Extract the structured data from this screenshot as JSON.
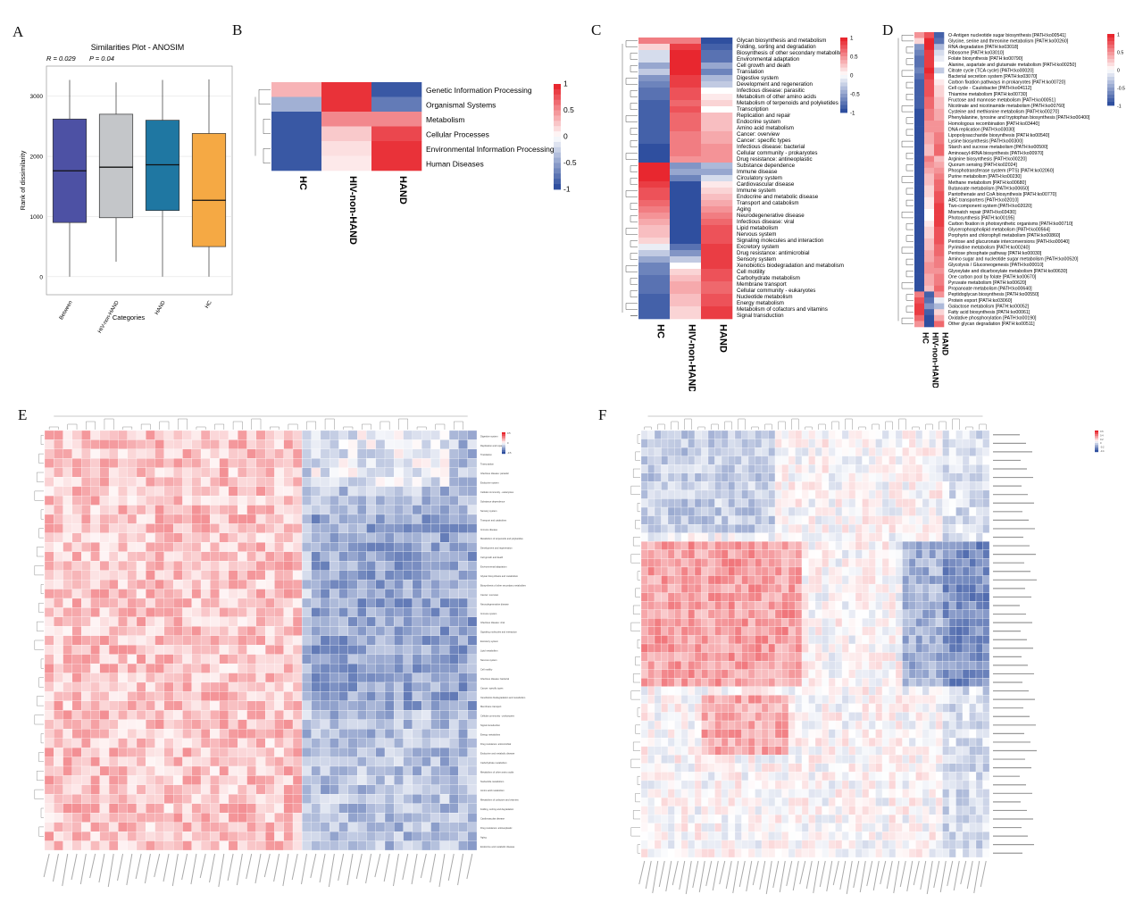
{
  "panel_labels": {
    "a": "A",
    "b": "B",
    "c": "C",
    "d": "D",
    "e": "E",
    "f": "F"
  },
  "colors": {
    "low": "#2f4f9f",
    "mid": "#ffffff",
    "high": "#e8272f"
  },
  "chart_data": [
    {
      "id": "A",
      "type": "box",
      "title": "Similarities Plot - ANOSIM",
      "stats": {
        "r": "R = 0.029",
        "p": "P = 0.04"
      },
      "xlabel": "Categories",
      "ylabel": "Rank of dissimilarity",
      "ylim": [
        -300,
        3500
      ],
      "yticks": [
        0,
        1000,
        2000,
        3000
      ],
      "categories": [
        "Between",
        "HIV-non-HAND",
        "HAND",
        "HC"
      ],
      "colors": [
        "#4d51a4",
        "#c4c6c9",
        "#1f77a2",
        "#f5a944"
      ],
      "boxes": [
        {
          "q1": 900,
          "median": 1760,
          "q3": 2620,
          "low": 0,
          "high": 3270
        },
        {
          "q1": 980,
          "median": 1820,
          "q3": 2700,
          "low": 250,
          "high": 3230
        },
        {
          "q1": 1100,
          "median": 1860,
          "q3": 2600,
          "low": 0,
          "high": 3270
        },
        {
          "q1": 500,
          "median": 1270,
          "q3": 2380,
          "low": 0,
          "high": 3280
        }
      ]
    },
    {
      "id": "B",
      "type": "heatmap",
      "columns": [
        "HC",
        "HIV-non-HAND",
        "HAND"
      ],
      "rows": [
        "Genetic Information Processing",
        "Organismal Systems",
        "Metabolism",
        "Cellular Processes",
        "Environmental Information Processing",
        "Human Diseases"
      ],
      "values": [
        [
          0.35,
          0.95,
          -0.95
        ],
        [
          -0.45,
          0.95,
          -0.75
        ],
        [
          -0.95,
          0.55,
          0.55
        ],
        [
          -0.95,
          0.25,
          0.85
        ],
        [
          -0.95,
          0.15,
          0.95
        ],
        [
          -0.95,
          0.1,
          0.95
        ]
      ],
      "legend_ticks": [
        "1",
        "0.5",
        "0",
        "-0.5",
        "-1"
      ]
    },
    {
      "id": "C",
      "type": "heatmap",
      "columns": [
        "HC",
        "HIV-non-HAND",
        "HAND"
      ],
      "rows": [
        "Glycan biosynthesis and metabolism",
        "Folding, sorting and degradation",
        "Biosynthesis of other secondary metabolites",
        "Environmental adaptation",
        "Cell growth and death",
        "Translation",
        "Digestive system",
        "Development and regeneration",
        "Infectious disease: parasitic",
        "Metabolism of other amino acids",
        "Metabolism of terpenoids and polyketides",
        "Transcription",
        "Replication and repair",
        "Endocrine system",
        "Amino acid metabolism",
        "Cancer: overview",
        "Cancer: specific types",
        "Infectious disease: bacterial",
        "Cellular community - prokaryotes",
        "Drug resistance: antineoplastic",
        "Substance dependence",
        "Immune disease",
        "Circulatory system",
        "Cardiovascular disease",
        "Immune system",
        "Endocrine and metabolic disease",
        "Transport and catabolism",
        "Aging",
        "Neurodegenerative disease",
        "Infectious disease: viral",
        "Lipid metabolism",
        "Nervous system",
        "Signaling molecules and interaction",
        "Excretory system",
        "Drug resistance: antimicrobial",
        "Sensory system",
        "Xenobiotics biodegradation and metabolism",
        "Cell motility",
        "Carbohydrate metabolism",
        "Membrane transport",
        "Cellular community - eukaryotes",
        "Nucleotide metabolism",
        "Energy metabolism",
        "Metabolism of cofactors and vitamins",
        "Signal transduction"
      ],
      "values": [
        [
          0.6,
          0.6,
          -1.0
        ],
        [
          0.2,
          0.9,
          -0.9
        ],
        [
          -0.2,
          1.0,
          -0.8
        ],
        [
          -0.2,
          1.0,
          -0.8
        ],
        [
          -0.5,
          1.0,
          -0.5
        ],
        [
          -0.3,
          1.0,
          -0.7
        ],
        [
          -0.6,
          0.9,
          -0.4
        ],
        [
          -0.7,
          0.9,
          -0.3
        ],
        [
          -0.8,
          0.8,
          0.0
        ],
        [
          -0.8,
          0.8,
          0.1
        ],
        [
          -0.9,
          0.7,
          0.2
        ],
        [
          -0.9,
          0.8,
          0.0
        ],
        [
          -0.9,
          0.7,
          0.3
        ],
        [
          -0.9,
          0.7,
          0.3
        ],
        [
          -0.9,
          0.7,
          0.3
        ],
        [
          -0.9,
          0.6,
          0.4
        ],
        [
          -0.9,
          0.6,
          0.4
        ],
        [
          -1.0,
          0.6,
          0.5
        ],
        [
          -1.0,
          0.6,
          0.5
        ],
        [
          -1.0,
          0.5,
          0.5
        ],
        [
          1.0,
          -0.6,
          -0.4
        ],
        [
          1.0,
          -0.5,
          -0.5
        ],
        [
          1.0,
          -0.7,
          -0.2
        ],
        [
          0.9,
          -1.0,
          0.1
        ],
        [
          0.8,
          -1.0,
          0.2
        ],
        [
          0.8,
          -1.0,
          0.3
        ],
        [
          0.7,
          -1.0,
          0.4
        ],
        [
          0.6,
          -1.0,
          0.5
        ],
        [
          0.5,
          -1.0,
          0.6
        ],
        [
          0.4,
          -1.0,
          0.7
        ],
        [
          0.3,
          -1.0,
          0.8
        ],
        [
          0.3,
          -1.0,
          0.8
        ],
        [
          0.2,
          -1.0,
          0.8
        ],
        [
          -0.1,
          -0.8,
          0.9
        ],
        [
          -0.3,
          -0.6,
          0.9
        ],
        [
          -0.5,
          -0.3,
          0.9
        ],
        [
          -0.7,
          0.0,
          0.9
        ],
        [
          -0.7,
          0.2,
          0.8
        ],
        [
          -0.8,
          0.3,
          0.8
        ],
        [
          -0.8,
          0.4,
          0.7
        ],
        [
          -0.8,
          0.4,
          0.7
        ],
        [
          -0.9,
          0.3,
          0.8
        ],
        [
          -0.9,
          0.3,
          0.8
        ],
        [
          -0.9,
          0.2,
          0.9
        ],
        [
          -0.9,
          0.2,
          0.9
        ]
      ],
      "legend_ticks": [
        "1",
        "0.5",
        "0",
        "-0.5",
        "-1"
      ]
    },
    {
      "id": "D",
      "type": "heatmap",
      "columns": [
        "HC",
        "HIV-non-HAND",
        "HAND"
      ],
      "rows": [
        "O-Antigen nucleotide sugar biosynthesis [PATH:ko00541]",
        "Glycine, serine and threonine metabolism [PATH:ko00260]",
        "RNA degradation [PATH:ko03018]",
        "Ribosome [PATH:ko03010]",
        "Folate biosynthesis [PATH:ko00790]",
        "Alanine, aspartate and glutamate metabolism [PATH:ko00250]",
        "Citrate cycle (TCA cycle) [PATH:ko00020]",
        "Bacterial secretion system [PATH:ko03070]",
        "Carbon fixation pathways in prokaryotes [PATH:ko00720]",
        "Cell cycle - Caulobacter [PATH:ko04112]",
        "Thiamine metabolism [PATH:ko00730]",
        "Fructose and mannose metabolism [PATH:ko00051]",
        "Nicotinate and nicotinamide metabolism [PATH:ko00760]",
        "Cysteine and methionine metabolism [PATH:ko00270]",
        "Phenylalanine, tyrosine and tryptophan biosynthesis [PATH:ko00400]",
        "Homologous recombination [PATH:ko03440]",
        "DNA replication [PATH:ko03030]",
        "Lipopolysaccharide biosynthesis [PATH:ko00540]",
        "Lysine biosynthesis [PATH:ko00300]",
        "Starch and sucrose metabolism [PATH:ko00500]",
        "Aminoacyl-tRNA biosynthesis [PATH:ko00970]",
        "Arginine biosynthesis [PATH:ko00220]",
        "Quorum sensing [PATH:ko02024]",
        "Phosphotransferase system (PTS) [PATH:ko02060]",
        "Purine metabolism [PATH:ko00230]",
        "Methane metabolism [PATH:ko00680]",
        "Butanoate metabolism [PATH:ko00650]",
        "Pantothenate and CoA biosynthesis [PATH:ko00770]",
        "ABC transporters [PATH:ko02010]",
        "Two-component system [PATH:ko02020]",
        "Mismatch repair [PATH:ko03430]",
        "Photosynthesis [PATH:ko00195]",
        "Carbon fixation in photosynthetic organisms [PATH:ko00710]",
        "Glycerophospholipid metabolism [PATH:ko00564]",
        "Porphyrin and chlorophyll metabolism [PATH:ko00860]",
        "Pentose and glucuronate interconversions [PATH:ko00040]",
        "Pyrimidine metabolism [PATH:ko00240]",
        "Pentose phosphate pathway [PATH:ko00030]",
        "Amino sugar and nucleotide sugar metabolism [PATH:ko00520]",
        "Glycolysis / Gluconeogenesis [PATH:ko00010]",
        "Glyoxylate and dicarboxylate metabolism [PATH:ko00630]",
        "One carbon pool by folate [PATH:ko00670]",
        "Pyruvate metabolism [PATH:ko00620]",
        "Propanoate metabolism [PATH:ko00640]",
        "Peptidoglycan biosynthesis [PATH:ko00550]",
        "Protein export [PATH:ko03060]",
        "Galactose metabolism [PATH:ko00052]",
        "Fatty acid biosynthesis [PATH:ko00061]",
        "Oxidative phosphorylation [PATH:ko00190]",
        "Other glycan degradation [PATH:ko00511]"
      ],
      "values": [
        [
          0.5,
          0.8,
          -0.9
        ],
        [
          0.2,
          1.0,
          -0.8
        ],
        [
          -0.6,
          1.0,
          -0.4
        ],
        [
          -0.7,
          0.9,
          -0.2
        ],
        [
          -0.8,
          0.9,
          -0.1
        ],
        [
          -0.8,
          0.9,
          0.0
        ],
        [
          -0.7,
          1.0,
          -0.3
        ],
        [
          -0.8,
          0.9,
          0.0
        ],
        [
          -0.9,
          0.8,
          0.1
        ],
        [
          -0.9,
          0.8,
          0.2
        ],
        [
          -0.9,
          0.8,
          0.2
        ],
        [
          -0.9,
          0.7,
          0.3
        ],
        [
          -0.9,
          0.7,
          0.3
        ],
        [
          -1.0,
          0.6,
          0.4
        ],
        [
          -1.0,
          0.6,
          0.4
        ],
        [
          -1.0,
          0.5,
          0.5
        ],
        [
          -1.0,
          0.5,
          0.5
        ],
        [
          -1.0,
          0.4,
          0.6
        ],
        [
          -1.0,
          0.4,
          0.6
        ],
        [
          -1.0,
          0.3,
          0.7
        ],
        [
          -1.0,
          0.3,
          0.7
        ],
        [
          -1.0,
          0.6,
          0.3
        ],
        [
          -1.0,
          0.5,
          0.4
        ],
        [
          -1.0,
          0.4,
          0.5
        ],
        [
          -1.0,
          0.3,
          0.6
        ],
        [
          -1.0,
          0.3,
          0.7
        ],
        [
          -1.0,
          0.2,
          0.7
        ],
        [
          -1.0,
          0.2,
          0.8
        ],
        [
          -1.0,
          0.1,
          0.8
        ],
        [
          -1.0,
          0.1,
          0.9
        ],
        [
          -1.0,
          0.0,
          0.9
        ],
        [
          -1.0,
          0.0,
          0.9
        ],
        [
          -1.0,
          0.1,
          0.9
        ],
        [
          -1.0,
          0.2,
          0.8
        ],
        [
          -1.0,
          0.2,
          0.8
        ],
        [
          -1.0,
          0.3,
          0.8
        ],
        [
          -1.0,
          0.3,
          0.7
        ],
        [
          -1.0,
          0.4,
          0.7
        ],
        [
          -1.0,
          0.4,
          0.6
        ],
        [
          -1.0,
          0.5,
          0.6
        ],
        [
          -1.0,
          0.5,
          0.5
        ],
        [
          -1.0,
          0.4,
          0.6
        ],
        [
          -1.0,
          0.4,
          0.6
        ],
        [
          -1.0,
          0.3,
          0.7
        ],
        [
          0.6,
          -0.9,
          0.5
        ],
        [
          0.8,
          -0.8,
          -0.1
        ],
        [
          0.9,
          -0.6,
          -0.4
        ],
        [
          0.9,
          -0.9,
          0.2
        ],
        [
          0.7,
          -1.0,
          0.4
        ],
        [
          0.5,
          -1.0,
          0.7
        ]
      ],
      "legend_ticks": [
        "1",
        "0.5",
        "0",
        "-0.5",
        "-1"
      ]
    },
    {
      "id": "E",
      "type": "heatmap",
      "n_rows": 45,
      "n_cols": 47,
      "rows": [
        "Digestive system",
        "Replication and repair",
        "Translation",
        "Transcription",
        "Infectious disease: parasitic",
        "Endocrine system",
        "Cellular community - eukaryotes",
        "Substance dependence",
        "Sensory system",
        "Transport and catabolism",
        "Immune disease",
        "Metabolism of terpenoids and polyketides",
        "Development and regeneration",
        "Cell growth and death",
        "Environmental adaptation",
        "Glycan biosynthesis and metabolism",
        "Biosynthesis of other secondary metabolites",
        "Cancer: overview",
        "Neurodegenerative disease",
        "Immune system",
        "Infectious disease: viral",
        "Signaling molecules and interaction",
        "Excretory system",
        "Lipid metabolism",
        "Nervous system",
        "Cell motility",
        "Infectious disease: bacterial",
        "Cancer: specific types",
        "Xenobiotics biodegradation and metabolism",
        "Membrane transport",
        "Cellular community - prokaryotes",
        "Signal transduction",
        "Energy metabolism",
        "Drug resistance: antimicrobial",
        "Endocrine and metabolic disease",
        "Carbohydrate metabolism",
        "Metabolism of other amino acids",
        "Nucleotide metabolism",
        "Amino acid metabolism",
        "Metabolism of cofactors and vitamins",
        "Folding, sorting and degradation",
        "Cardiovascular disease",
        "Drug resistance: antineoplastic",
        "Aging",
        "Endocrine and metabolic disease"
      ],
      "legend_ticks": [
        "0.5",
        "0",
        "-0.5"
      ],
      "pattern": "left 60% of genera positively correlated (red), right 40% negatively correlated (blue); dense small text"
    },
    {
      "id": "F",
      "type": "heatmap",
      "n_rows": 50,
      "n_cols": 52,
      "legend_ticks": [
        "0.6",
        "0.4",
        "0.2",
        "0",
        "-0.2",
        "-0.4"
      ],
      "pattern": "block structure: lower-left and middle red clusters, right blue cluster; dense small text"
    }
  ]
}
